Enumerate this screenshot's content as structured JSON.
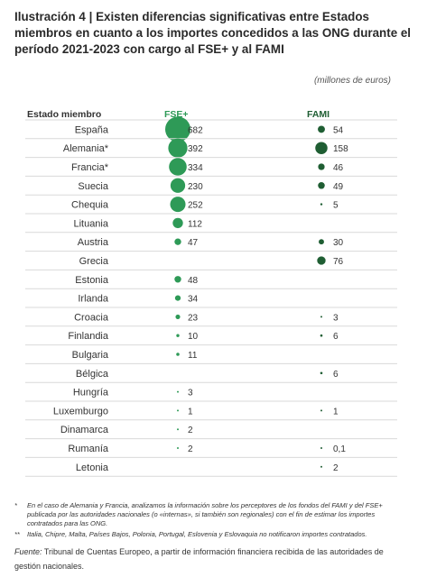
{
  "title": "Ilustración 4 | Existen diferencias significativas entre Estados miembros en cuanto a los importes concedidos a las ONG durante el período 2021-2023 con cargo al FSE+ y al FAMI",
  "units": "(millones de euros)",
  "headers": {
    "state": "Estado miembro",
    "fse": "FSE+",
    "fami": "FAMI"
  },
  "colors": {
    "fse": "#2e9a57",
    "fami": "#1f5e33",
    "rule": "#d9d9d9"
  },
  "chart_data": {
    "type": "table",
    "columns": [
      "Estado miembro",
      "FSE+",
      "FAMI"
    ],
    "rows": [
      {
        "state": "España",
        "fse": 682,
        "fse_label": "682",
        "fami": 54,
        "fami_label": "54"
      },
      {
        "state": "Alemania*",
        "fse": 392,
        "fse_label": "392",
        "fami": 158,
        "fami_label": "158"
      },
      {
        "state": "Francia*",
        "fse": 334,
        "fse_label": "334",
        "fami": 46,
        "fami_label": "46"
      },
      {
        "state": "Suecia",
        "fse": 230,
        "fse_label": "230",
        "fami": 49,
        "fami_label": "49"
      },
      {
        "state": "Chequia",
        "fse": 252,
        "fse_label": "252",
        "fami": 5,
        "fami_label": "5"
      },
      {
        "state": "Lituania",
        "fse": 112,
        "fse_label": "112",
        "fami": null,
        "fami_label": ""
      },
      {
        "state": "Austria",
        "fse": 47,
        "fse_label": "47",
        "fami": 30,
        "fami_label": "30"
      },
      {
        "state": "Grecia",
        "fse": null,
        "fse_label": "",
        "fami": 76,
        "fami_label": "76"
      },
      {
        "state": "Estonia",
        "fse": 48,
        "fse_label": "48",
        "fami": null,
        "fami_label": ""
      },
      {
        "state": "Irlanda",
        "fse": 34,
        "fse_label": "34",
        "fami": null,
        "fami_label": ""
      },
      {
        "state": "Croacia",
        "fse": 23,
        "fse_label": "23",
        "fami": 3,
        "fami_label": "3"
      },
      {
        "state": "Finlandia",
        "fse": 10,
        "fse_label": "10",
        "fami": 6,
        "fami_label": "6"
      },
      {
        "state": "Bulgaria",
        "fse": 11,
        "fse_label": "11",
        "fami": null,
        "fami_label": ""
      },
      {
        "state": "Bélgica",
        "fse": null,
        "fse_label": "",
        "fami": 6,
        "fami_label": "6"
      },
      {
        "state": "Hungría",
        "fse": 3,
        "fse_label": "3",
        "fami": null,
        "fami_label": ""
      },
      {
        "state": "Luxemburgo",
        "fse": 1,
        "fse_label": "1",
        "fami": 1,
        "fami_label": "1"
      },
      {
        "state": "Dinamarca",
        "fse": 2,
        "fse_label": "2",
        "fami": null,
        "fami_label": ""
      },
      {
        "state": "Rumanía",
        "fse": 2,
        "fse_label": "2",
        "fami": 0.1,
        "fami_label": "0,1"
      },
      {
        "state": "Letonia",
        "fse": null,
        "fse_label": "",
        "fami": 2,
        "fami_label": "2"
      }
    ]
  },
  "footnotes": {
    "fn1_mark": "*",
    "fn1_text": "En el caso de Alemania y Francia, analizamos la información sobre los perceptores de los fondos del FAMI y del FSE+ publicada por las autoridades nacionales (o «internas», si también son regionales) con el fin de estimar los importes contratados para las ONG.",
    "fn2_mark": "**",
    "fn2_text": "Italia, Chipre, Malta, Países Bajos, Polonia, Portugal, Eslovenia y Eslovaquia no notificaron importes contratados.",
    "source_label": "Fuente:",
    "source_text": "Tribunal de Cuentas Europeo, a partir de información financiera recibida de las autoridades de gestión nacionales."
  }
}
